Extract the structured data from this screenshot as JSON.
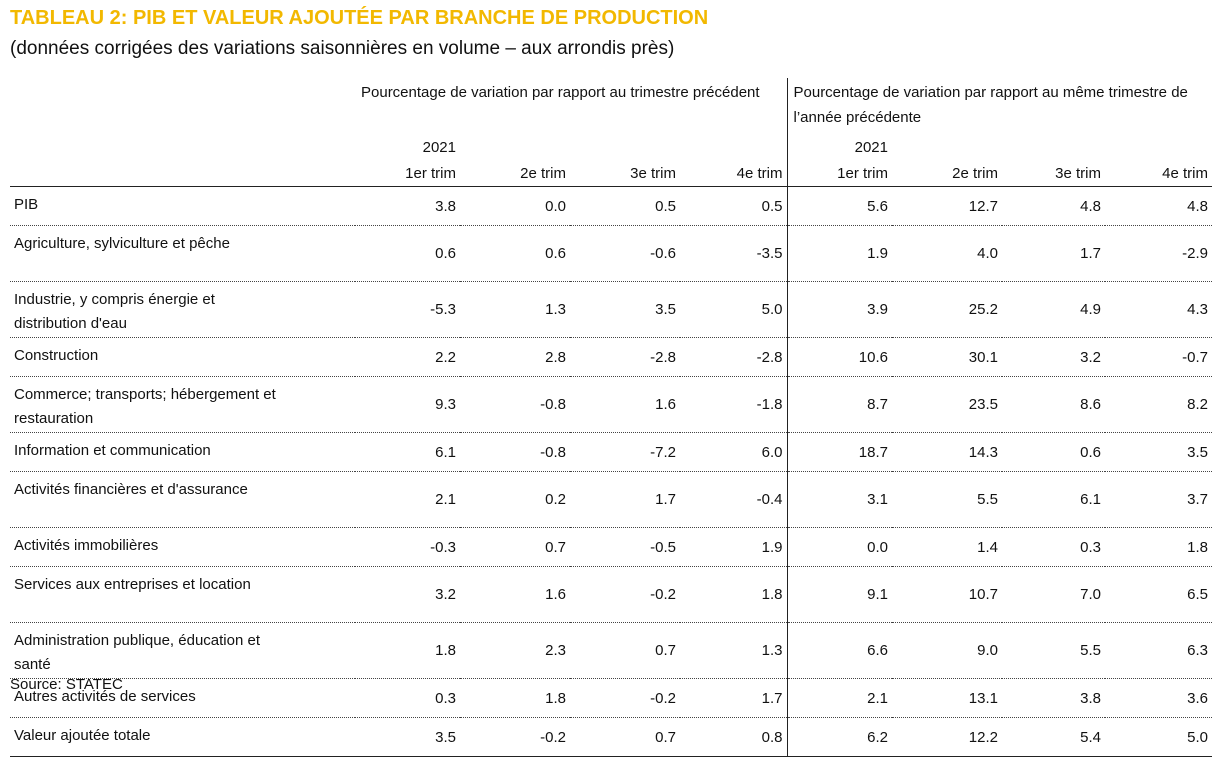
{
  "header": {
    "title": "TABLEAU 2: PIB ET VALEUR AJOUTÉE PAR BRANCHE DE PRODUCTION",
    "subtitle": "(données corrigées des variations saisonnières en volume – aux arrondis près)"
  },
  "table": {
    "groups": [
      "Pourcentage de variation par rapport au trimestre précédent",
      "Pourcentage de variation par rapport au même trimestre de l’année précédente"
    ],
    "years": [
      "2021",
      "2021"
    ],
    "columns": [
      "1er trim",
      "2e trim",
      "3e trim",
      "4e trim",
      "1er trim",
      "2e trim",
      "3e trim",
      "4e trim"
    ],
    "rows": [
      [
        "PIB",
        "3.8",
        "0.0",
        "0.5",
        "0.5",
        "5.6",
        "12.7",
        "4.8",
        "4.8"
      ],
      [
        "Agriculture, sylviculture et pêche",
        "0.6",
        "0.6",
        "-0.6",
        "-3.5",
        "1.9",
        "4.0",
        "1.7",
        "-2.9"
      ],
      [
        "Industrie, y compris énergie et distribution d'eau",
        "-5.3",
        "1.3",
        "3.5",
        "5.0",
        "3.9",
        "25.2",
        "4.9",
        "4.3"
      ],
      [
        "Construction",
        "2.2",
        "2.8",
        "-2.8",
        "-2.8",
        "10.6",
        "30.1",
        "3.2",
        "-0.7"
      ],
      [
        "Commerce; transports; hébergement et restauration",
        "9.3",
        "-0.8",
        "1.6",
        "-1.8",
        "8.7",
        "23.5",
        "8.6",
        "8.2"
      ],
      [
        "Information et communication",
        "6.1",
        "-0.8",
        "-7.2",
        "6.0",
        "18.7",
        "14.3",
        "0.6",
        "3.5"
      ],
      [
        "Activités financières et d'assurance",
        "2.1",
        "0.2",
        "1.7",
        "-0.4",
        "3.1",
        "5.5",
        "6.1",
        "3.7"
      ],
      [
        "Activités immobilières",
        "-0.3",
        "0.7",
        "-0.5",
        "1.9",
        "0.0",
        "1.4",
        "0.3",
        "1.8"
      ],
      [
        "Services aux entreprises et location",
        "3.2",
        "1.6",
        "-0.2",
        "1.8",
        "9.1",
        "10.7",
        "7.0",
        "6.5"
      ],
      [
        "Administration publique, éducation et santé",
        "1.8",
        "2.3",
        "0.7",
        "1.3",
        "6.6",
        "9.0",
        "5.5",
        "6.3"
      ],
      [
        "Autres activités de services",
        "0.3",
        "1.8",
        "-0.2",
        "1.7",
        "2.1",
        "13.1",
        "3.8",
        "3.6"
      ],
      [
        "Valeur ajoutée totale",
        "3.5",
        "-0.2",
        "0.7",
        "0.8",
        "6.2",
        "12.2",
        "5.4",
        "5.0"
      ]
    ]
  },
  "footer": {
    "source": "Source: STATEC"
  }
}
